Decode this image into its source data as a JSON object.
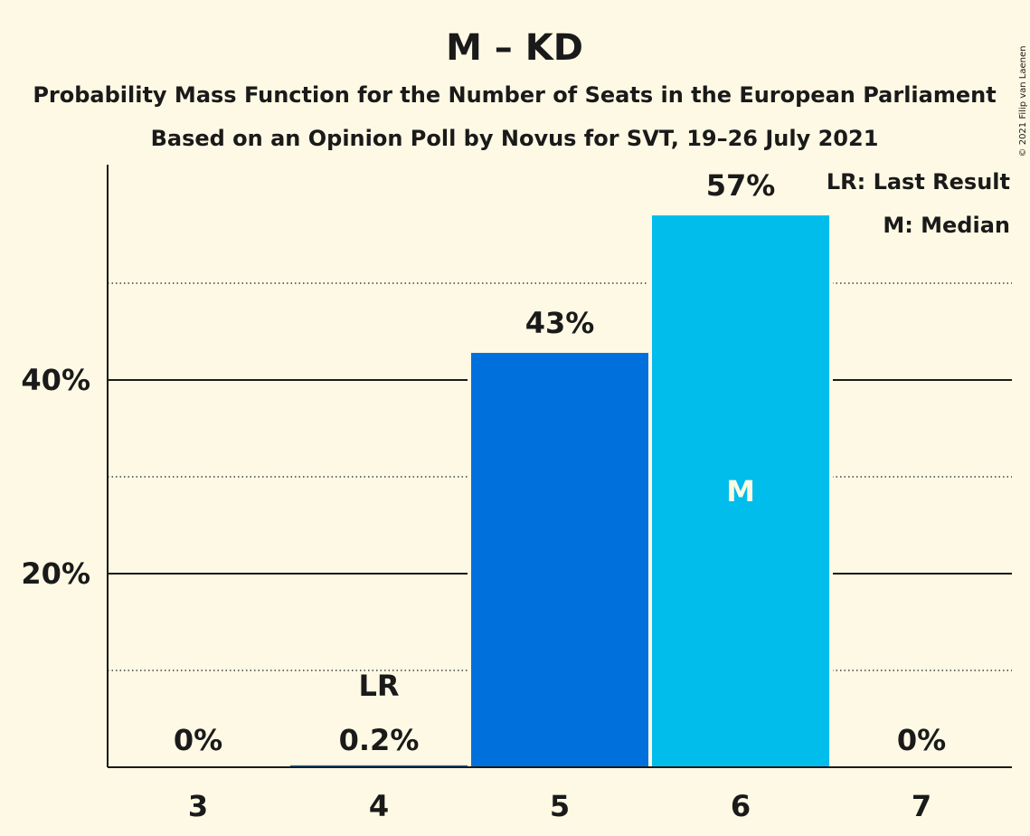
{
  "chart_data": {
    "type": "bar",
    "title": "M – KD",
    "subtitle": "Probability Mass Function for the Number of Seats in the European Parliament",
    "subtitle2": "Based on an Opinion Poll by Novus for SVT, 19–26 July 2021",
    "copyright": "© 2021 Filip van Laenen",
    "categories": [
      "3",
      "4",
      "5",
      "6",
      "7"
    ],
    "values": [
      0,
      0.2,
      42.8,
      57.0,
      0
    ],
    "value_labels": [
      "0%",
      "0.2%",
      "43%",
      "57%",
      "0%"
    ],
    "bar_colors": [
      "#0070dc",
      "#0070dc",
      "#0070dc",
      "#00bdec",
      "#0070dc"
    ],
    "y_ticks": [
      {
        "value": 20,
        "label": "20%"
      },
      {
        "value": 40,
        "label": "40%"
      }
    ],
    "y_minor_gridlines": [
      10,
      30,
      50
    ],
    "ylim": [
      0,
      62
    ],
    "last_result": {
      "category": "4",
      "label": "LR"
    },
    "median": {
      "category": "6",
      "label": "M"
    },
    "legend": {
      "placement": "top-right",
      "entries": [
        "LR: Last Result",
        "M: Median"
      ]
    }
  }
}
